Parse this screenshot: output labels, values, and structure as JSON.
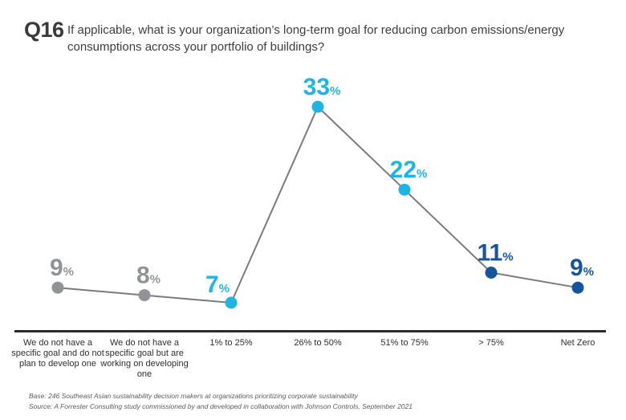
{
  "header": {
    "question_number": "Q16",
    "question_text": "If applicable, what is your organization’s long-term goal for reducing carbon emissions/energy consumptions across your portfolio of buildings?"
  },
  "colors": {
    "gray": "#919396",
    "light_blue": "#1FB4E2",
    "dark_blue": "#17549C",
    "line": "#7B7B7B",
    "axis": "#2B2B2B"
  },
  "chart_data": {
    "type": "line",
    "title": "",
    "xlabel": "",
    "ylabel": "",
    "categories": [
      "We do not have a specific goal and do not plan to develop one",
      "We do not have a specific goal but are working on developing one",
      "1% to 25%",
      "26% to 50%",
      "51% to 75%",
      "> 75%",
      "Net Zero"
    ],
    "values": [
      9,
      8,
      7,
      33,
      22,
      11,
      9
    ],
    "unit": "%",
    "point_colors": [
      "gray",
      "gray",
      "light_blue",
      "light_blue",
      "light_blue",
      "dark_blue",
      "dark_blue"
    ],
    "ylim": [
      0,
      35
    ],
    "grid": false,
    "legend": "none"
  },
  "footer": {
    "base": "Base: 246 Southeast Asian sustainability decision makers at organizations prioritizing corporate sustainability",
    "source": "Source: A Forrester Consulting study commissioned by and developed in collaboration with Johnson Controls, September 2021"
  }
}
